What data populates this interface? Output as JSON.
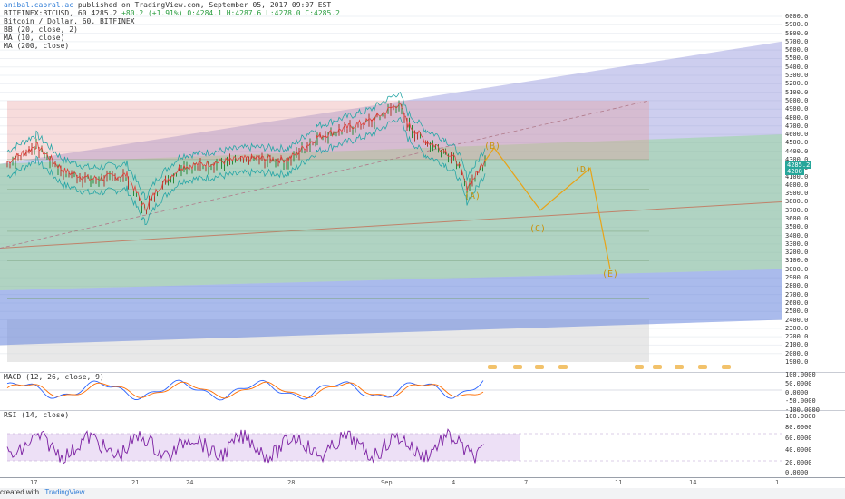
{
  "header": {
    "author": "anibal.cabral.ac",
    "published": "published on TradingView.com, September 05, 2017 09:07 EST",
    "ticker": "BITFINEX:BTCUSD, 60",
    "last": "4285.2",
    "change": "+80.2 (+1.91%)",
    "ohlc": "O:4284.1 H:4287.6 L:4278.0 C:4285.2",
    "symbol_title": "Bitcoin / Dollar, 60, BITFINEX",
    "indicators": [
      "BB (20, close, 2)",
      "MA (10, close)",
      "MA (200, close)"
    ]
  },
  "price_axis": [
    "6000.0",
    "5900.0",
    "5800.0",
    "5700.0",
    "5600.0",
    "5500.0",
    "5400.0",
    "5300.0",
    "5200.0",
    "5100.0",
    "5000.0",
    "4900.0",
    "4800.0",
    "4700.0",
    "4600.0",
    "4500.0",
    "4400.0",
    "4300.0",
    "4200.0",
    "4100.0",
    "4000.0",
    "3900.0",
    "3800.0",
    "3700.0",
    "3600.0",
    "3500.0",
    "3400.0",
    "3300.0",
    "3200.0",
    "3100.0",
    "3000.0",
    "2900.0",
    "2800.0",
    "2700.0",
    "2600.0",
    "2500.0",
    "2400.0",
    "2300.0",
    "2200.0",
    "2100.0",
    "2000.0",
    "1900.0"
  ],
  "price_tags": [
    "4285.2",
    "4208"
  ],
  "macd": {
    "label": "MACD (12, 26, close, 9)",
    "axis": [
      "100.0000",
      "50.0000",
      "0.0000",
      "-50.0000",
      "-100.0000"
    ]
  },
  "rsi": {
    "label": "RSI (14, close)",
    "axis": [
      "100.0000",
      "80.0000",
      "60.0000",
      "40.0000",
      "20.0000",
      "0.0000"
    ]
  },
  "time_axis": [
    "17",
    "21",
    "24",
    "28",
    "Sep",
    "4",
    "7",
    "11",
    "14",
    "1"
  ],
  "waves": [
    "(A)",
    "(B)",
    "(C)",
    "(D)",
    "(E)"
  ],
  "footer": {
    "created": "created with",
    "brand": "TradingView"
  },
  "colors": {
    "upper_channel": "#7c7fd6",
    "lower_channel": "#5b8ee6",
    "green_zone": "#8fd98c",
    "red_zone": "#e89a9a",
    "wave_line": "#e8a317",
    "bb_band": "#27a6a6",
    "ma10": "#e0413b",
    "macd_line": "#2962ff",
    "signal_line": "#ff6d00",
    "rsi_line": "#7b1fa2",
    "rsi_band": "#e8d8f4"
  },
  "chart_data": {
    "type": "candlestick-ohlc",
    "title": "Bitcoin / Dollar, 60, BITFINEX",
    "ylim": [
      1900,
      6000
    ],
    "series": [
      {
        "name": "BTCUSD",
        "x": [
          "17",
          "21",
          "24",
          "28",
          "Sep",
          "4"
        ],
        "values": [
          4250,
          3650,
          4230,
          4400,
          4800,
          4285
        ]
      }
    ],
    "wave_projection": {
      "labels": [
        "(A)",
        "(B)",
        "(C)",
        "(D)",
        "(E)"
      ],
      "values": [
        4000,
        4440,
        3700,
        4200,
        3000
      ]
    },
    "last_close": 4285.2
  }
}
